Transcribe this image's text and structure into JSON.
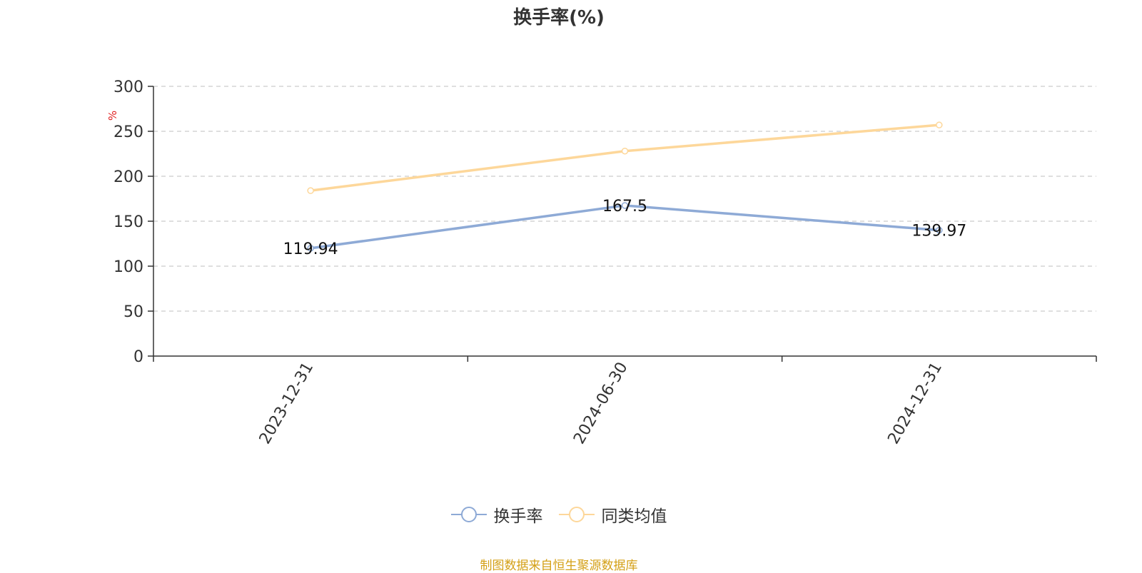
{
  "chart_data": {
    "type": "line",
    "title": "换手率(%)",
    "ylabel": "%",
    "categories": [
      "2023-12-31",
      "2024-06-30",
      "2024-12-31"
    ],
    "ylim": [
      0,
      300
    ],
    "yticks": [
      0,
      50,
      100,
      150,
      200,
      250,
      300
    ],
    "grid": true,
    "legend_position": "bottom",
    "series": [
      {
        "name": "换手率",
        "values": [
          119.94,
          167.5,
          139.97
        ],
        "color": "#8eaad6",
        "data_labels": [
          "119.94",
          "167.5",
          "139.97"
        ]
      },
      {
        "name": "同类均值",
        "values": [
          184,
          228,
          257
        ],
        "color": "#fdd79a"
      }
    ],
    "source": "制图数据来自恒生聚源数据库"
  }
}
